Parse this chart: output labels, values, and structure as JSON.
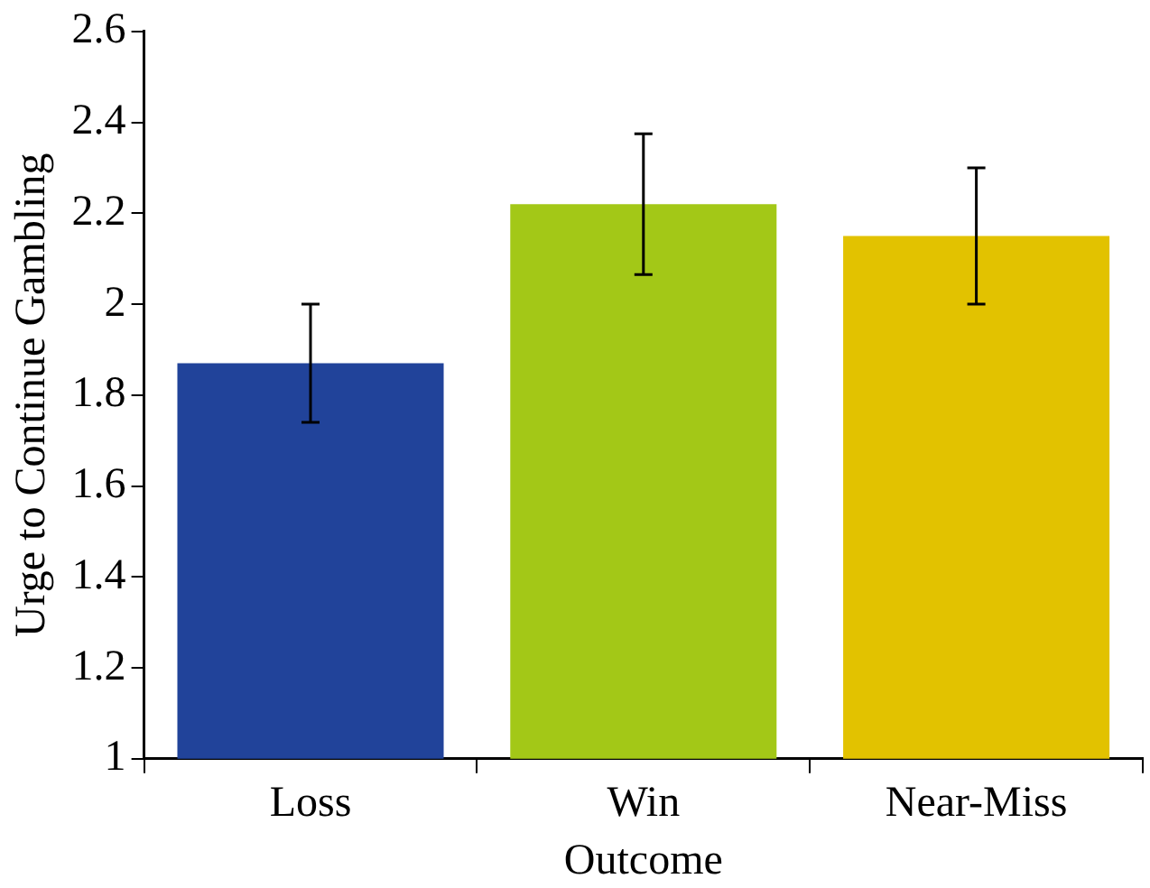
{
  "chart_data": {
    "type": "bar",
    "xlabel": "Outcome",
    "ylabel": "Urge to Continue Gambling",
    "categories": [
      "Loss",
      "Win",
      "Near-Miss"
    ],
    "values": [
      1.87,
      2.22,
      2.15
    ],
    "colors": [
      "#21439a",
      "#a3c817",
      "#e2c200"
    ],
    "errors": [
      0.13,
      0.155,
      0.15
    ],
    "ylim": [
      1,
      2.6
    ],
    "yticks": [
      1,
      1.2,
      1.4,
      1.6,
      1.8,
      2,
      2.2,
      2.4,
      2.6
    ],
    "grid": false,
    "legend": false
  }
}
